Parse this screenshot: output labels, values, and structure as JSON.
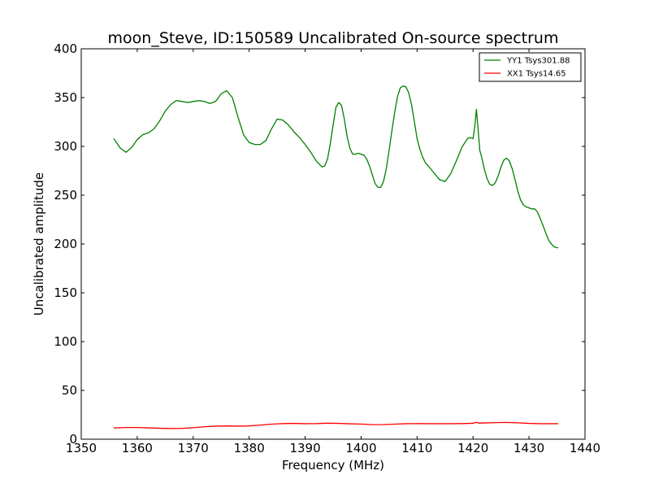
{
  "chart_data": {
    "type": "line",
    "title": "moon_Steve, ID:150589 Uncalibrated On-source spectrum",
    "xlabel": "Frequency (MHz)",
    "ylabel": "Uncalibrated amplitude",
    "xlim": [
      1350,
      1440
    ],
    "ylim": [
      0,
      400
    ],
    "xticks": [
      1350,
      1360,
      1370,
      1380,
      1390,
      1400,
      1410,
      1420,
      1430,
      1440
    ],
    "yticks": [
      0,
      50,
      100,
      150,
      200,
      250,
      300,
      350,
      400
    ],
    "grid": false,
    "legend_position": "top-right",
    "series": [
      {
        "name": "YY1 Tsys301.88",
        "color": "#008000",
        "x": [
          1355.8,
          1357,
          1358,
          1359,
          1360,
          1361,
          1362,
          1363,
          1364,
          1365,
          1366,
          1367,
          1368,
          1369,
          1370,
          1371,
          1372,
          1373,
          1374,
          1375,
          1376,
          1377,
          1378,
          1379,
          1380,
          1381,
          1382,
          1383,
          1384,
          1385,
          1386,
          1387,
          1388,
          1389,
          1390,
          1391,
          1392,
          1393,
          1393.5,
          1394,
          1394.5,
          1395,
          1395.5,
          1396,
          1396.5,
          1397,
          1397.5,
          1398,
          1398.5,
          1399,
          1399.5,
          1400,
          1400.5,
          1401,
          1401.5,
          1402,
          1402.5,
          1403,
          1403.5,
          1404,
          1404.5,
          1405,
          1405.5,
          1406,
          1406.5,
          1407,
          1407.5,
          1408,
          1408.5,
          1409,
          1409.5,
          1410,
          1410.5,
          1411,
          1411.5,
          1412,
          1413,
          1414,
          1415,
          1416,
          1417,
          1418,
          1419,
          1419.5,
          1420,
          1420.3,
          1420.6,
          1420.9,
          1421.2,
          1421.5,
          1422,
          1422.5,
          1423,
          1423.5,
          1424,
          1424.5,
          1425,
          1425.5,
          1426,
          1426.5,
          1427,
          1427.5,
          1428,
          1428.5,
          1429,
          1429.5,
          1430,
          1430.5,
          1431,
          1431.5,
          1432,
          1432.5,
          1433,
          1433.5,
          1434,
          1434.5,
          1435.2
        ],
        "y": [
          308,
          298,
          294,
          299,
          307,
          312,
          314,
          318,
          326,
          336,
          343,
          347,
          346,
          345,
          346,
          347,
          346,
          344,
          346,
          354,
          357,
          350,
          330,
          312,
          304,
          302,
          302,
          306,
          318,
          328,
          327,
          322,
          315,
          309,
          302,
          294,
          285,
          279,
          280,
          287,
          303,
          322,
          340,
          345,
          342,
          328,
          310,
          298,
          292,
          292,
          293,
          292,
          291,
          287,
          280,
          271,
          262,
          258,
          258,
          264,
          277,
          296,
          316,
          335,
          351,
          360,
          362,
          361,
          355,
          343,
          326,
          308,
          297,
          289,
          283,
          280,
          273,
          266,
          264,
          272,
          285,
          299,
          308,
          309,
          308,
          320,
          338,
          318,
          296,
          290,
          277,
          267,
          261,
          260,
          263,
          270,
          279,
          286,
          288,
          285,
          277,
          266,
          254,
          245,
          240,
          238,
          237,
          236,
          236,
          233,
          226,
          219,
          211,
          204,
          200,
          197,
          196
        ]
      },
      {
        "name": "XX1 Tsys14.65",
        "color": "#ff0000",
        "x": [
          1355.8,
          1358,
          1360,
          1362,
          1364,
          1366,
          1368,
          1370,
          1372,
          1374,
          1376,
          1378,
          1380,
          1382,
          1384,
          1386,
          1388,
          1390,
          1392,
          1394,
          1396,
          1398,
          1400,
          1402,
          1404,
          1406,
          1408,
          1410,
          1412,
          1414,
          1416,
          1418,
          1420,
          1420.6,
          1421,
          1422,
          1424,
          1426,
          1428,
          1430,
          1432,
          1435.2
        ],
        "y": [
          11.5,
          12.0,
          12.0,
          11.6,
          11.2,
          11.0,
          11.1,
          11.8,
          12.7,
          13.4,
          13.6,
          13.4,
          13.6,
          14.5,
          15.4,
          16.0,
          16.2,
          15.9,
          16.0,
          16.4,
          16.2,
          15.8,
          15.5,
          14.9,
          15.0,
          15.4,
          15.9,
          16.0,
          15.9,
          15.9,
          15.9,
          16.0,
          16.3,
          17.3,
          16.5,
          16.6,
          17.0,
          17.2,
          16.8,
          16.2,
          15.9,
          15.9
        ]
      }
    ]
  }
}
